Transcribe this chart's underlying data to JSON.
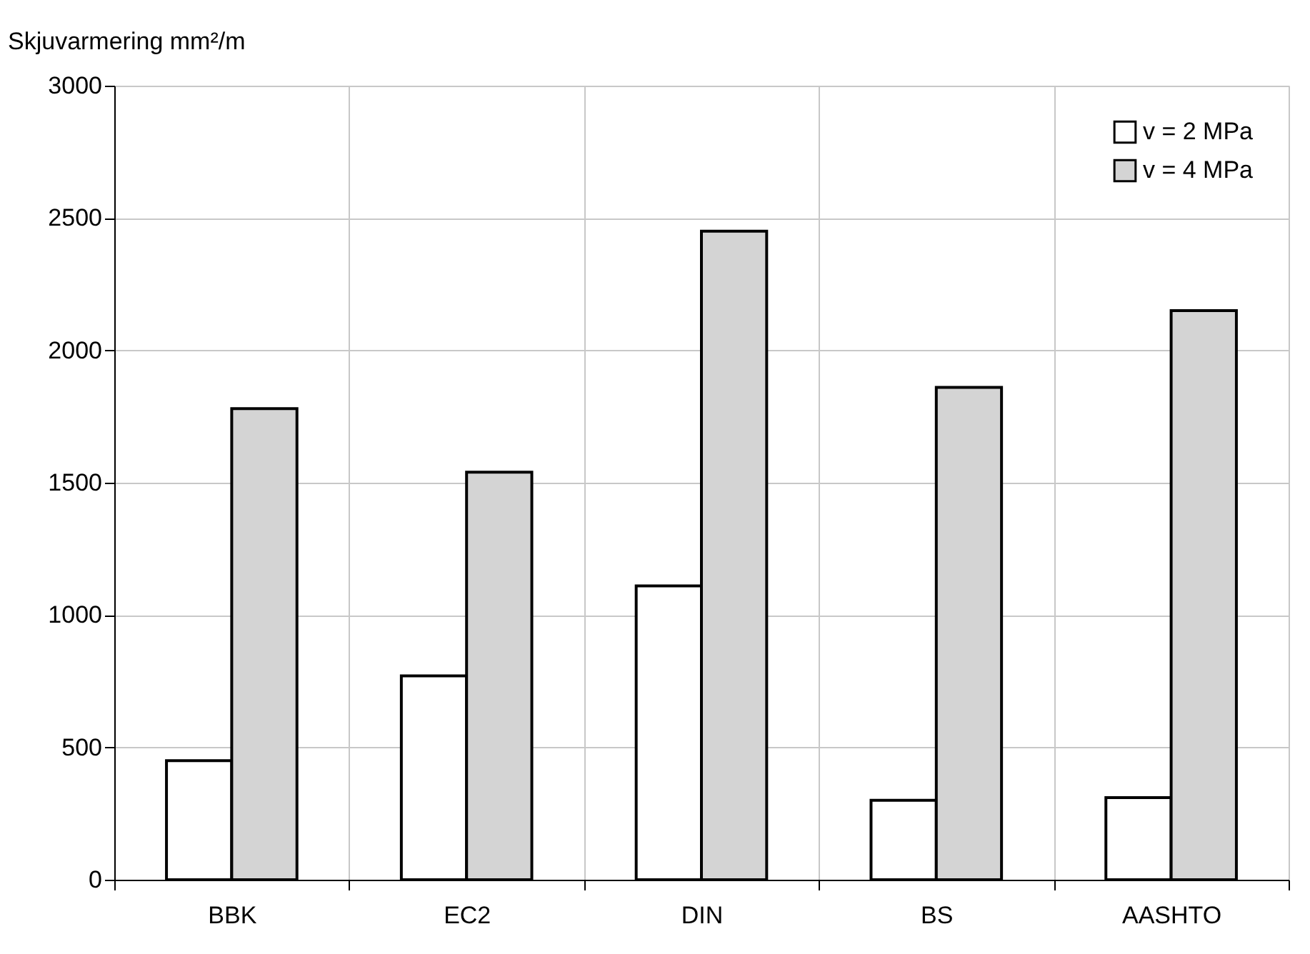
{
  "chart_data": {
    "type": "bar",
    "ylabel": "Skjuvarmering mm²/m",
    "categories": [
      "BBK",
      "EC2",
      "DIN",
      "BS",
      "AASHTO"
    ],
    "series": [
      {
        "name": "v = 2 MPa",
        "color": "#ffffff",
        "values": [
          450,
          770,
          1110,
          300,
          310
        ]
      },
      {
        "name": "v = 4 MPa",
        "color": "#d4d4d4",
        "values": [
          1780,
          1540,
          2450,
          1860,
          2150
        ]
      }
    ],
    "ylim": [
      0,
      3000
    ],
    "yticks": [
      0,
      500,
      1000,
      1500,
      2000,
      2500,
      3000
    ],
    "grid": true,
    "legend": "top right"
  }
}
